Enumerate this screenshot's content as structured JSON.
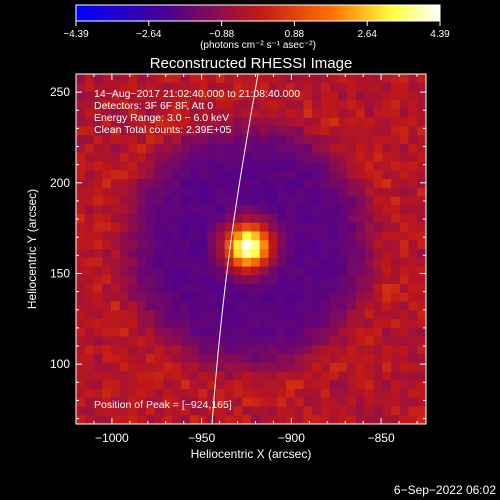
{
  "colorbar": {
    "ticks": [
      "−4.39",
      "−2.64",
      "−0.88",
      "0.88",
      "2.64",
      "4.39"
    ],
    "units_label": "(photons cm⁻² s⁻¹ asec⁻²)",
    "range": [
      -4.39,
      4.39
    ],
    "colormap": [
      "#0000ff",
      "#4b0090",
      "#c01818",
      "#ff7000",
      "#ffff40",
      "#ffffff"
    ]
  },
  "chart_data": {
    "type": "heatmap",
    "title": "Reconstructed RHESSI Image",
    "xlabel": "Heliocentric X (arcsec)",
    "ylabel": "Heliocentric Y (arcsec)",
    "xlim": [
      -1020,
      -825
    ],
    "ylim": [
      67,
      260
    ],
    "x_ticks": [
      -1000,
      -950,
      -900,
      -850
    ],
    "x_tick_labels": [
      "−1000",
      "−950",
      "−900",
      "−850"
    ],
    "y_ticks": [
      100,
      150,
      200,
      250
    ],
    "y_tick_labels": [
      "100",
      "150",
      "200",
      "250"
    ],
    "peak": {
      "x": -924,
      "y": 165,
      "value": 4.39
    },
    "annotations": [
      "14−Aug−2017 21:02:40.000 to 21:08:40.000",
      "Detectors: 3F 6F 8F, Att 0",
      "Energy Range: 3.0 − 6.0 keV",
      "Clean    Total counts: 2.39E+05"
    ],
    "peak_label": "Position of Peak = [−924,165]"
  },
  "footer": {
    "date": "6−Sep−2022 06:02"
  }
}
